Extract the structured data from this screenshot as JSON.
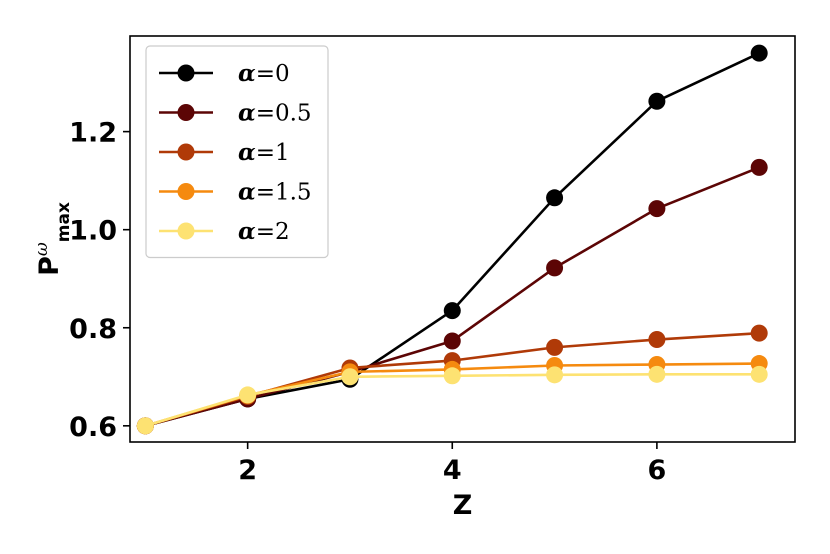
{
  "chart_data": {
    "type": "line",
    "title": "",
    "xlabel": "Z",
    "ylabel": {
      "main": "P",
      "superscript": "ω",
      "subscript": "max"
    },
    "xlim": [
      0.85,
      7.35
    ],
    "ylim": [
      0.567,
      1.395
    ],
    "x_ticks": [
      2,
      4,
      6
    ],
    "y_ticks": [
      0.6,
      0.8,
      1.0,
      1.2
    ],
    "y_tick_labels": [
      "0.6",
      "0.8",
      "1.0",
      "1.2"
    ],
    "grid": false,
    "legend_position": "top-left",
    "x": [
      1,
      2,
      3,
      4,
      5,
      6,
      7
    ],
    "series": [
      {
        "name": "α=0",
        "symbol": "α",
        "value": "=0",
        "color": "#000000",
        "values": [
          0.6,
          0.655,
          0.695,
          0.835,
          1.065,
          1.262,
          1.36
        ]
      },
      {
        "name": "α=0.5",
        "symbol": "α",
        "value": "=0.5",
        "color": "#5c0505",
        "values": [
          0.6,
          0.655,
          0.71,
          0.773,
          0.922,
          1.043,
          1.127
        ]
      },
      {
        "name": "α=1",
        "symbol": "α",
        "value": "=1",
        "color": "#b03a08",
        "values": [
          0.6,
          0.66,
          0.718,
          0.733,
          0.76,
          0.776,
          0.789
        ]
      },
      {
        "name": "α=1.5",
        "symbol": "α",
        "value": "=1.5",
        "color": "#f58a0f",
        "values": [
          0.6,
          0.662,
          0.71,
          0.715,
          0.723,
          0.725,
          0.727
        ]
      },
      {
        "name": "α=2",
        "symbol": "α",
        "value": "=2",
        "color": "#fde272",
        "values": [
          0.6,
          0.663,
          0.7,
          0.702,
          0.704,
          0.705,
          0.705
        ]
      }
    ]
  }
}
